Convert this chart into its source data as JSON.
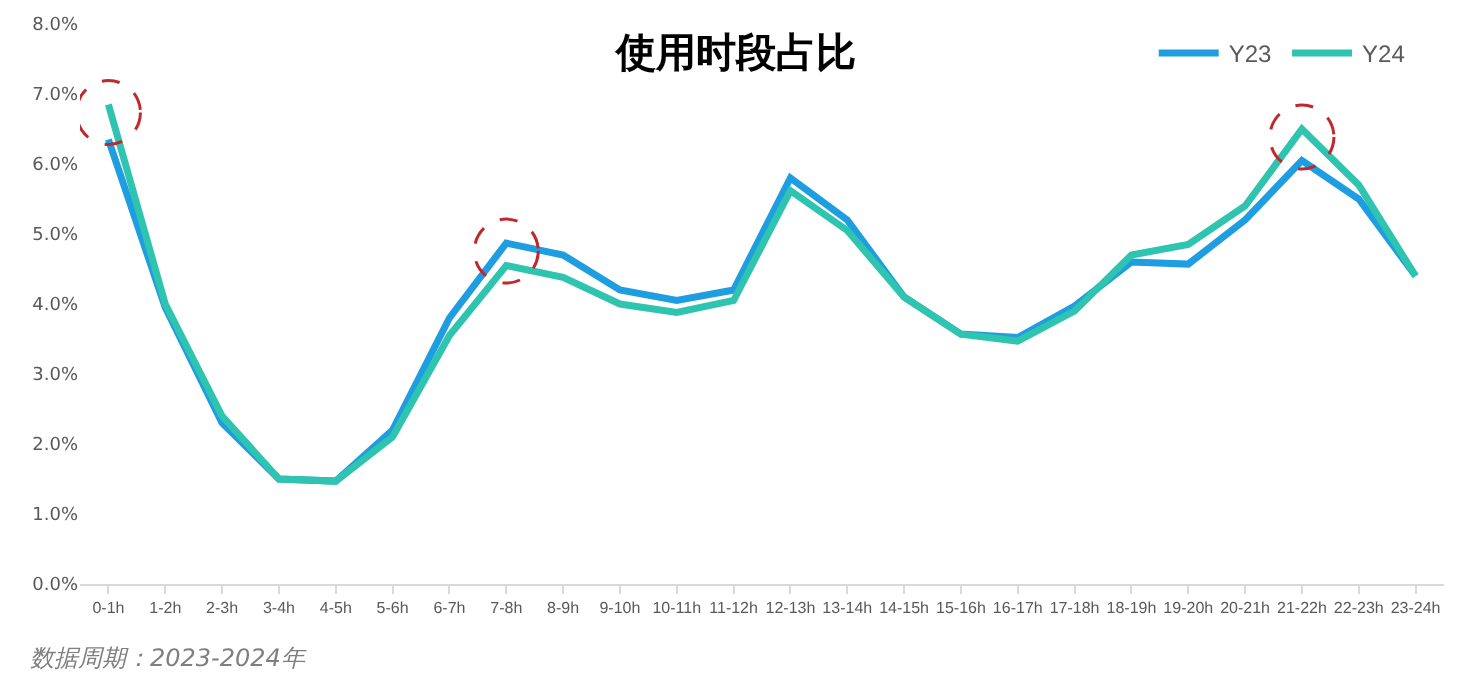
{
  "chart_data": {
    "type": "line",
    "title": "使用时段占比",
    "categories": [
      "0-1h",
      "1-2h",
      "2-3h",
      "3-4h",
      "4-5h",
      "5-6h",
      "6-7h",
      "7-8h",
      "8-9h",
      "9-10h",
      "10-11h",
      "11-12h",
      "12-13h",
      "13-14h",
      "14-15h",
      "15-16h",
      "16-17h",
      "17-18h",
      "18-19h",
      "19-20h",
      "20-21h",
      "21-22h",
      "22-23h",
      "23-24h"
    ],
    "series": [
      {
        "name": "Y23",
        "color": "#1e9ee0",
        "values": [
          6.35,
          3.95,
          2.3,
          1.5,
          1.47,
          2.2,
          3.8,
          4.87,
          4.7,
          4.2,
          4.05,
          4.2,
          5.8,
          5.2,
          4.1,
          3.57,
          3.52,
          3.97,
          4.6,
          4.57,
          5.2,
          6.05,
          5.5,
          4.4
        ]
      },
      {
        "name": "Y24",
        "color": "#2ec4b0",
        "values": [
          6.85,
          4.0,
          2.4,
          1.5,
          1.47,
          2.1,
          3.55,
          4.55,
          4.38,
          4.0,
          3.88,
          4.05,
          5.62,
          5.05,
          4.1,
          3.57,
          3.47,
          3.9,
          4.7,
          4.85,
          5.4,
          6.5,
          5.7,
          4.4
        ]
      }
    ],
    "ylim": [
      0,
      8
    ],
    "yticks": [
      {
        "value": 0,
        "label": "0.0%"
      },
      {
        "value": 1,
        "label": "1.0%"
      },
      {
        "value": 2,
        "label": "2.0%"
      },
      {
        "value": 3,
        "label": "3.0%"
      },
      {
        "value": 4,
        "label": "4.0%"
      },
      {
        "value": 5,
        "label": "5.0%"
      },
      {
        "value": 6,
        "label": "6.0%"
      },
      {
        "value": 7,
        "label": "7.0%"
      },
      {
        "value": 8,
        "label": "8.0%"
      }
    ],
    "grid": false,
    "legend": "top right",
    "marker": "none",
    "line_style": "solid",
    "annotations": [
      "数据周期：2023-2024年"
    ]
  }
}
